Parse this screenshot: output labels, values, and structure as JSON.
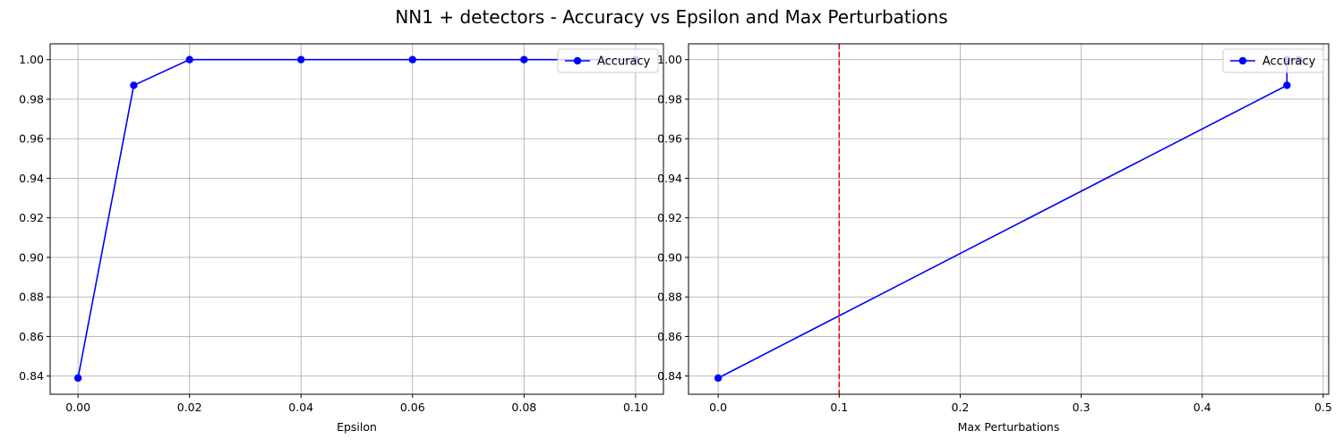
{
  "suptitle": "NN1 + detectors - Accuracy vs Epsilon and Max Perturbations",
  "colors": {
    "series": "#0000ff",
    "threshold": "#ff0000",
    "grid": "#b0b0b0"
  },
  "chart_data": [
    {
      "type": "line",
      "title": "",
      "xlabel": "Epsilon",
      "ylabel": "",
      "xlim": [
        -0.005,
        0.105
      ],
      "ylim": [
        0.8308,
        1.008
      ],
      "xticks": [
        0.0,
        0.02,
        0.04,
        0.06,
        0.08,
        0.1
      ],
      "xtick_labels": [
        "0.00",
        "0.02",
        "0.04",
        "0.06",
        "0.08",
        "0.10"
      ],
      "yticks": [
        0.84,
        0.86,
        0.88,
        0.9,
        0.92,
        0.94,
        0.96,
        0.98,
        1.0
      ],
      "ytick_labels": [
        "0.84",
        "0.86",
        "0.88",
        "0.90",
        "0.92",
        "0.94",
        "0.96",
        "0.98",
        "1.00"
      ],
      "grid": true,
      "legend": "top-right",
      "series": [
        {
          "name": "Accuracy",
          "marker": "circle",
          "x": [
            0.0,
            0.01,
            0.02,
            0.04,
            0.06,
            0.08,
            0.1
          ],
          "y": [
            0.839,
            0.987,
            1.0,
            1.0,
            1.0,
            1.0,
            1.0
          ]
        }
      ]
    },
    {
      "type": "line",
      "title": "",
      "xlabel": "Max Perturbations",
      "ylabel": "",
      "xlim": [
        -0.0245,
        0.5045
      ],
      "ylim": [
        0.8308,
        1.008
      ],
      "xticks": [
        0.0,
        0.1,
        0.2,
        0.3,
        0.4,
        0.5
      ],
      "xtick_labels": [
        "0.0",
        "0.1",
        "0.2",
        "0.3",
        "0.4",
        "0.5"
      ],
      "yticks": [
        0.84,
        0.86,
        0.88,
        0.9,
        0.92,
        0.94,
        0.96,
        0.98,
        1.0
      ],
      "ytick_labels": [
        "0.84",
        "0.86",
        "0.88",
        "0.90",
        "0.92",
        "0.94",
        "0.96",
        "0.98",
        "1.00"
      ],
      "grid": true,
      "legend": "top-right",
      "vline": {
        "x": 0.1,
        "style": "dashed"
      },
      "series": [
        {
          "name": "Accuracy",
          "marker": "circle",
          "x": [
            0.0,
            0.47,
            0.47,
            0.48,
            0.48,
            0.48,
            0.48
          ],
          "y": [
            0.839,
            0.987,
            1.0,
            1.0,
            1.0,
            1.0,
            1.0
          ]
        }
      ]
    }
  ]
}
